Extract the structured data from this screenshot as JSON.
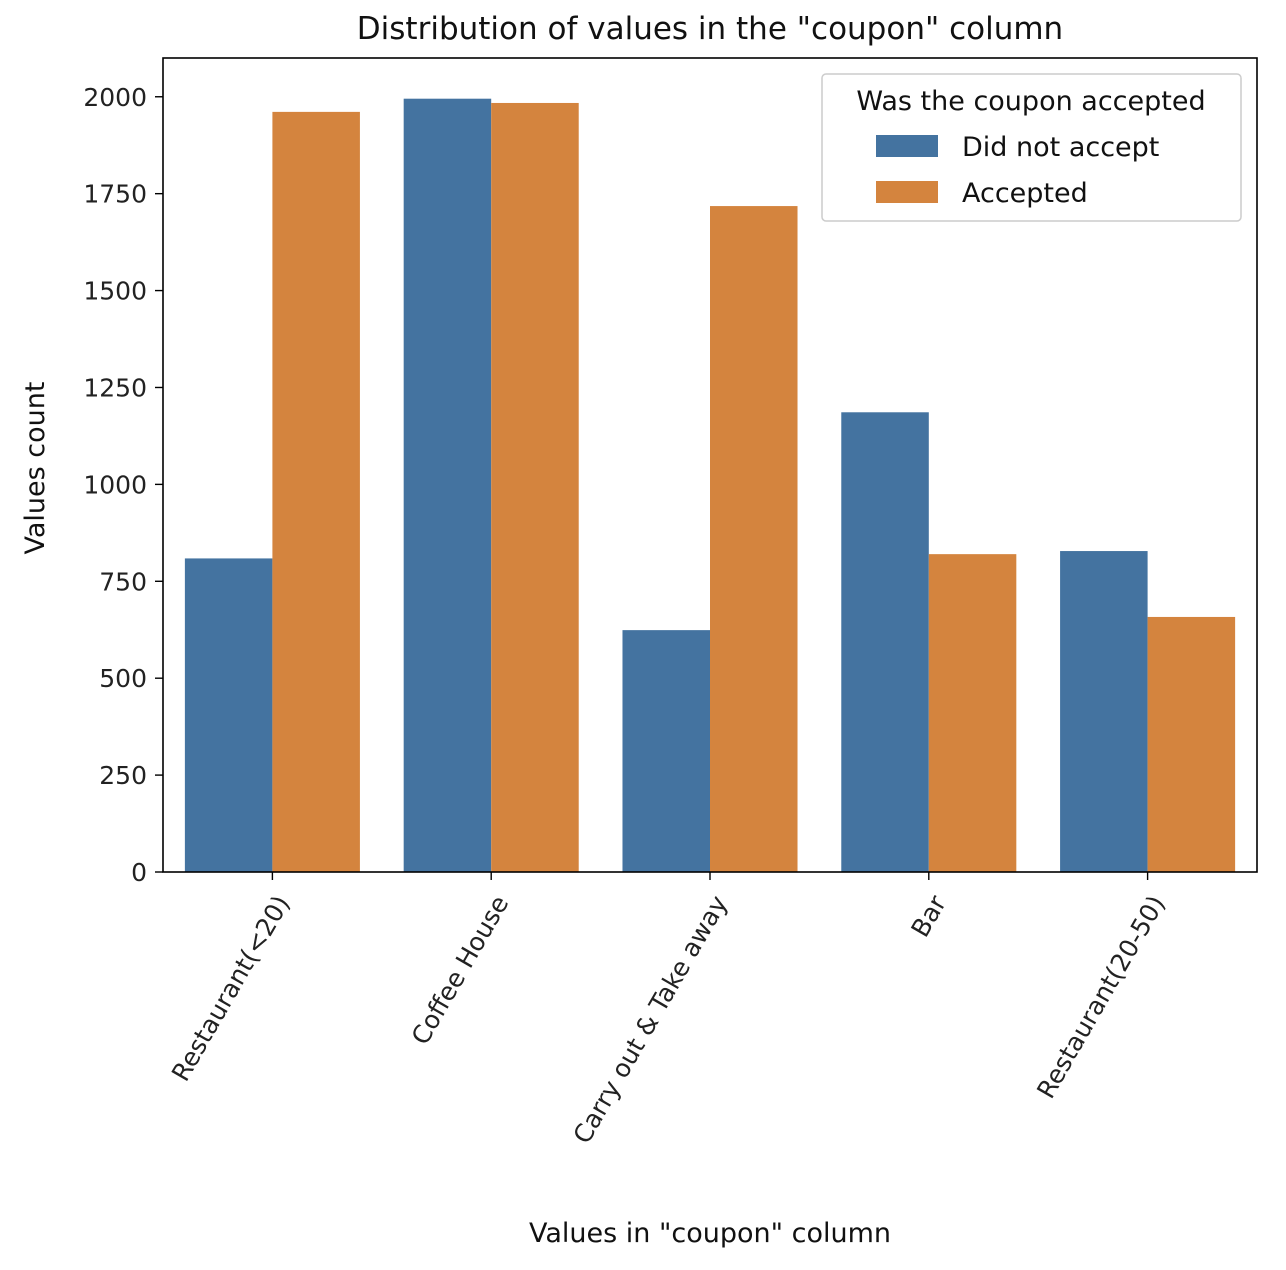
{
  "chart_data": {
    "type": "bar",
    "title": "Distribution of values in the \"coupon\" column",
    "xlabel": "Values in \"coupon\" column",
    "ylabel": "Values count",
    "categories": [
      "Restaurant(<20)",
      "Coffee House",
      "Carry out & Take away",
      "Bar",
      "Restaurant(20-50)"
    ],
    "series": [
      {
        "name": "Did not accept",
        "color": "#4473a0",
        "values": [
          809,
          1995,
          624,
          1186,
          828
        ]
      },
      {
        "name": "Accepted",
        "color": "#d4843e",
        "values": [
          1961,
          1984,
          1718,
          820,
          658
        ]
      }
    ],
    "ylim": [
      0,
      2100
    ],
    "yticks": [
      0,
      250,
      500,
      750,
      1000,
      1250,
      1500,
      1750,
      2000
    ],
    "legend": {
      "title": "Was the coupon accepted",
      "placement": "top-right"
    },
    "grid": false
  }
}
